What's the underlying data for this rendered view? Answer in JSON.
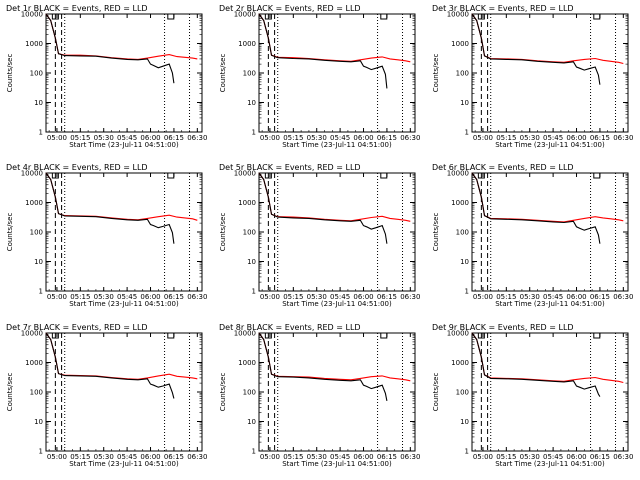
{
  "chart_data": {
    "type": "line",
    "layout_rows": 3,
    "layout_cols": 3,
    "y_scale": "log",
    "ylim": [
      1,
      10000
    ],
    "y_ticks": [
      1,
      10,
      100,
      1000,
      10000
    ],
    "y_tick_labels": [
      "1",
      "10",
      "100",
      "1000",
      "10000"
    ],
    "x_tick_labels": [
      "05:00",
      "05:15",
      "05:30",
      "05:45",
      "06:00",
      "06:15",
      "06:30"
    ],
    "xlim": [
      "04:53",
      "06:33"
    ],
    "ylabel": "Counts/sec",
    "xlabel": "Start Time (23-Jul-11 04:51:00)",
    "colors": {
      "events": "#000000",
      "lld": "#ff0000"
    },
    "dashed_marker_x": [
      "04:59",
      "05:03"
    ],
    "dotted_marker_x": [
      "05:05",
      "06:09",
      "06:25"
    ],
    "panels": [
      {
        "title": "Det 1r BLACK = Events, RED = LLD",
        "series": [
          {
            "x": [
              "04:53",
              "04:56",
              "04:59",
              "05:01",
              "05:05",
              "05:15",
              "05:25",
              "05:35",
              "05:45",
              "05:52",
              "05:58",
              "06:00",
              "06:02",
              "06:05",
              "06:08",
              "06:12",
              "06:14",
              "06:15"
            ],
            "y": [
              10000,
              6000,
              1500,
              450,
              390,
              380,
              370,
              320,
              290,
              280,
              300,
              200,
              180,
              150,
              170,
              200,
              100,
              45
            ]
          },
          {
            "x": [
              "04:53",
              "04:56",
              "04:59",
              "05:01",
              "05:05",
              "05:15",
              "05:25",
              "05:35",
              "05:45",
              "05:52",
              "05:58",
              "06:05",
              "06:12",
              "06:17",
              "06:22",
              "06:27",
              "06:30"
            ],
            "y": [
              10000,
              6000,
              1500,
              450,
              400,
              400,
              380,
              330,
              300,
              290,
              320,
              370,
              420,
              360,
              340,
              320,
              300
            ]
          }
        ]
      },
      {
        "title": "Det 2r BLACK = Events, RED = LLD",
        "series": [
          {
            "x": [
              "04:53",
              "04:56",
              "04:59",
              "05:01",
              "05:05",
              "05:15",
              "05:25",
              "05:35",
              "05:45",
              "05:52",
              "05:58",
              "06:00",
              "06:02",
              "06:05",
              "06:08",
              "06:12",
              "06:14",
              "06:15"
            ],
            "y": [
              10000,
              6000,
              1500,
              400,
              330,
              310,
              300,
              270,
              250,
              240,
              260,
              170,
              155,
              130,
              145,
              170,
              90,
              30
            ]
          },
          {
            "x": [
              "04:53",
              "04:56",
              "04:59",
              "05:01",
              "05:05",
              "05:15",
              "05:25",
              "05:35",
              "05:45",
              "05:52",
              "05:58",
              "06:05",
              "06:12",
              "06:17",
              "06:22",
              "06:27",
              "06:30"
            ],
            "y": [
              10000,
              6000,
              1500,
              400,
              340,
              330,
              310,
              280,
              260,
              250,
              280,
              320,
              350,
              300,
              280,
              260,
              240
            ]
          }
        ]
      },
      {
        "title": "Det 3r BLACK = Events, RED = LLD",
        "series": [
          {
            "x": [
              "04:53",
              "04:56",
              "04:59",
              "05:01",
              "05:05",
              "05:15",
              "05:25",
              "05:35",
              "05:45",
              "05:52",
              "05:58",
              "06:00",
              "06:02",
              "06:05",
              "06:08",
              "06:12",
              "06:14",
              "06:15"
            ],
            "y": [
              10000,
              6000,
              1500,
              380,
              300,
              290,
              280,
              250,
              230,
              220,
              240,
              160,
              145,
              125,
              140,
              160,
              85,
              40
            ]
          },
          {
            "x": [
              "04:53",
              "04:56",
              "04:59",
              "05:01",
              "05:05",
              "05:15",
              "05:25",
              "05:35",
              "05:45",
              "05:52",
              "05:58",
              "06:05",
              "06:12",
              "06:17",
              "06:22",
              "06:27",
              "06:30"
            ],
            "y": [
              10000,
              6000,
              1500,
              380,
              310,
              300,
              290,
              260,
              240,
              230,
              260,
              290,
              310,
              270,
              250,
              230,
              210
            ]
          }
        ]
      },
      {
        "title": "Det 4r BLACK = Events, RED = LLD",
        "series": [
          {
            "x": [
              "04:53",
              "04:56",
              "04:59",
              "05:01",
              "05:05",
              "05:15",
              "05:25",
              "05:35",
              "05:45",
              "05:52",
              "05:58",
              "06:00",
              "06:02",
              "06:05",
              "06:08",
              "06:12",
              "06:14",
              "06:15"
            ],
            "y": [
              10000,
              6000,
              1500,
              420,
              350,
              340,
              330,
              290,
              260,
              250,
              270,
              180,
              165,
              140,
              155,
              180,
              95,
              40
            ]
          },
          {
            "x": [
              "04:53",
              "04:56",
              "04:59",
              "05:01",
              "05:05",
              "05:15",
              "05:25",
              "05:35",
              "05:45",
              "05:52",
              "05:58",
              "06:05",
              "06:12",
              "06:17",
              "06:22",
              "06:27",
              "06:30"
            ],
            "y": [
              10000,
              6000,
              1500,
              420,
              360,
              350,
              340,
              300,
              270,
              260,
              290,
              330,
              370,
              320,
              300,
              280,
              250
            ]
          }
        ]
      },
      {
        "title": "Det 5r BLACK = Events, RED = LLD",
        "series": [
          {
            "x": [
              "04:53",
              "04:56",
              "04:59",
              "05:01",
              "05:05",
              "05:15",
              "05:25",
              "05:35",
              "05:45",
              "05:52",
              "05:58",
              "06:00",
              "06:02",
              "06:05",
              "06:08",
              "06:12",
              "06:14",
              "06:15"
            ],
            "y": [
              10000,
              6000,
              1500,
              400,
              320,
              300,
              290,
              260,
              240,
              230,
              250,
              165,
              150,
              125,
              140,
              165,
              85,
              40
            ]
          },
          {
            "x": [
              "04:53",
              "04:56",
              "04:59",
              "05:01",
              "05:05",
              "05:15",
              "05:25",
              "05:35",
              "05:45",
              "05:52",
              "05:58",
              "06:05",
              "06:12",
              "06:17",
              "06:22",
              "06:27",
              "06:30"
            ],
            "y": [
              10000,
              6000,
              1500,
              400,
              330,
              320,
              300,
              270,
              250,
              240,
              270,
              310,
              340,
              290,
              270,
              250,
              230
            ]
          }
        ]
      },
      {
        "title": "Det 6r BLACK = Events, RED = LLD",
        "series": [
          {
            "x": [
              "04:53",
              "04:56",
              "04:59",
              "05:01",
              "05:05",
              "05:15",
              "05:25",
              "05:35",
              "05:45",
              "05:52",
              "05:58",
              "06:00",
              "06:02",
              "06:05",
              "06:08",
              "06:12",
              "06:14",
              "06:15"
            ],
            "y": [
              10000,
              6000,
              1500,
              360,
              280,
              270,
              260,
              240,
              220,
              210,
              230,
              150,
              135,
              115,
              130,
              150,
              80,
              40
            ]
          },
          {
            "x": [
              "04:53",
              "04:56",
              "04:59",
              "05:01",
              "05:05",
              "05:15",
              "05:25",
              "05:35",
              "05:45",
              "05:52",
              "05:58",
              "06:05",
              "06:12",
              "06:17",
              "06:22",
              "06:27",
              "06:30"
            ],
            "y": [
              10000,
              6000,
              1500,
              360,
              290,
              280,
              270,
              250,
              230,
              220,
              250,
              290,
              330,
              300,
              280,
              260,
              240
            ]
          }
        ]
      },
      {
        "title": "Det 7r BLACK = Events, RED = LLD",
        "series": [
          {
            "x": [
              "04:53",
              "04:56",
              "04:59",
              "05:01",
              "05:05",
              "05:15",
              "05:25",
              "05:35",
              "05:45",
              "05:52",
              "05:58",
              "06:00",
              "06:02",
              "06:05",
              "06:08",
              "06:12",
              "06:14",
              "06:15"
            ],
            "y": [
              10000,
              6000,
              1500,
              420,
              360,
              350,
              340,
              300,
              270,
              260,
              280,
              185,
              170,
              145,
              160,
              185,
              95,
              60
            ]
          },
          {
            "x": [
              "04:53",
              "04:56",
              "04:59",
              "05:01",
              "05:05",
              "05:15",
              "05:25",
              "05:35",
              "05:45",
              "05:52",
              "05:58",
              "06:05",
              "06:12",
              "06:17",
              "06:22",
              "06:27",
              "06:30"
            ],
            "y": [
              10000,
              6000,
              1500,
              420,
              370,
              360,
              350,
              310,
              280,
              270,
              300,
              350,
              400,
              340,
              320,
              300,
              280
            ]
          }
        ]
      },
      {
        "title": "Det 8r BLACK = Events, RED = LLD",
        "series": [
          {
            "x": [
              "04:53",
              "04:56",
              "04:59",
              "05:01",
              "05:05",
              "05:15",
              "05:25",
              "05:35",
              "05:45",
              "05:52",
              "05:58",
              "06:00",
              "06:02",
              "06:05",
              "06:08",
              "06:12",
              "06:14",
              "06:15"
            ],
            "y": [
              10000,
              6000,
              1500,
              400,
              330,
              320,
              300,
              270,
              250,
              240,
              260,
              170,
              155,
              130,
              145,
              170,
              90,
              50
            ]
          },
          {
            "x": [
              "04:53",
              "04:56",
              "04:59",
              "05:01",
              "05:05",
              "05:15",
              "05:25",
              "05:35",
              "05:45",
              "05:52",
              "05:58",
              "06:05",
              "06:12",
              "06:17",
              "06:22",
              "06:27",
              "06:30"
            ],
            "y": [
              10000,
              6000,
              1500,
              400,
              340,
              330,
              320,
              290,
              270,
              260,
              290,
              330,
              350,
              300,
              280,
              260,
              240
            ]
          }
        ]
      },
      {
        "title": "Det 9r BLACK = Events, RED = LLD",
        "series": [
          {
            "x": [
              "04:53",
              "04:56",
              "04:59",
              "05:01",
              "05:05",
              "05:15",
              "05:25",
              "05:35",
              "05:45",
              "05:52",
              "05:58",
              "06:00",
              "06:02",
              "06:05",
              "06:08",
              "06:12",
              "06:14",
              "06:15"
            ],
            "y": [
              10000,
              6000,
              1500,
              380,
              290,
              280,
              270,
              250,
              230,
              220,
              240,
              160,
              145,
              125,
              140,
              160,
              85,
              70
            ]
          },
          {
            "x": [
              "04:53",
              "04:56",
              "04:59",
              "05:01",
              "05:05",
              "05:15",
              "05:25",
              "05:35",
              "05:45",
              "05:52",
              "05:58",
              "06:05",
              "06:12",
              "06:17",
              "06:22",
              "06:27",
              "06:30"
            ],
            "y": [
              10000,
              6000,
              1500,
              380,
              300,
              290,
              280,
              260,
              240,
              230,
              260,
              290,
              310,
              270,
              250,
              230,
              210
            ]
          }
        ]
      }
    ]
  }
}
